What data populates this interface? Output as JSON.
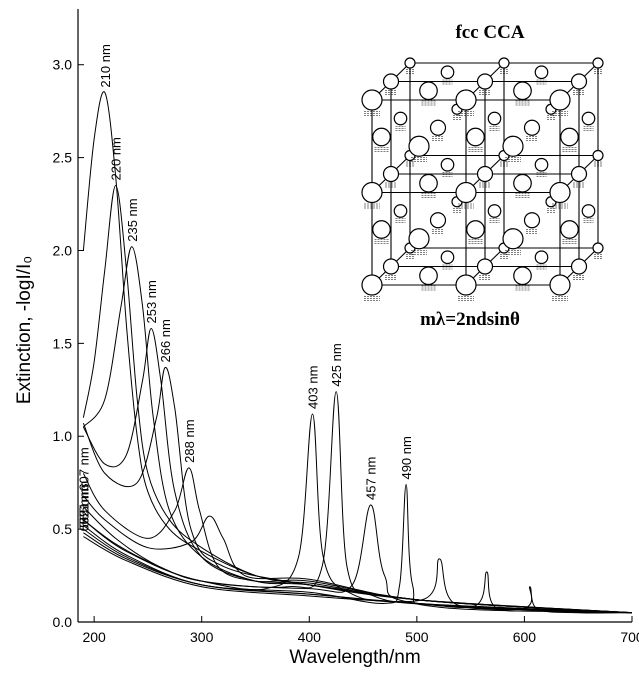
{
  "chart_data": {
    "type": "line",
    "xlabel": "Wavelength/nm",
    "ylabel": "Extinction, -logI/I₀",
    "inset_title": "fcc CCA",
    "inset_formula": "mλ=2ndsinθ",
    "xlim": [
      185,
      700
    ],
    "ylim": [
      0,
      3.3
    ],
    "xticks": [
      200,
      300,
      400,
      500,
      600,
      700
    ],
    "yticks": [
      {
        "value": 0,
        "label": "0.0"
      },
      0.5,
      {
        "value": 1,
        "label": "1.0"
      },
      1.5,
      {
        "value": 2,
        "label": "2.0"
      },
      2.5,
      {
        "value": 3,
        "label": "3.0"
      }
    ],
    "color": "#000000",
    "series": [
      {
        "name": "210 nm",
        "x": [
          190,
          200,
          210,
          220,
          230,
          240,
          250,
          270,
          300,
          350,
          400,
          500,
          600,
          700
        ],
        "values": [
          2.0,
          2.6,
          2.85,
          2.4,
          1.6,
          1.0,
          0.7,
          0.5,
          0.38,
          0.25,
          0.2,
          0.12,
          0.08,
          0.05
        ]
      },
      {
        "name": "220 nm",
        "x": [
          190,
          200,
          210,
          220,
          230,
          240,
          250,
          270,
          300,
          350,
          400,
          500,
          600,
          700
        ],
        "values": [
          1.1,
          1.4,
          1.9,
          2.35,
          1.9,
          1.2,
          0.8,
          0.55,
          0.4,
          0.25,
          0.2,
          0.12,
          0.08,
          0.05
        ]
      },
      {
        "name": "235 nm",
        "x": [
          190,
          210,
          225,
          235,
          245,
          255,
          270,
          300,
          350,
          400,
          500,
          600,
          700
        ],
        "values": [
          1.05,
          1.2,
          1.7,
          2.02,
          1.7,
          1.1,
          0.6,
          0.35,
          0.22,
          0.2,
          0.12,
          0.08,
          0.05
        ]
      },
      {
        "name": "253 nm",
        "x": [
          190,
          210,
          230,
          245,
          253,
          262,
          275,
          300,
          350,
          400,
          500,
          700
        ],
        "values": [
          1.05,
          0.85,
          0.9,
          1.3,
          1.58,
          1.3,
          0.7,
          0.35,
          0.22,
          0.21,
          0.12,
          0.05
        ]
      },
      {
        "name": "266 nm",
        "x": [
          190,
          210,
          240,
          258,
          266,
          275,
          290,
          320,
          400,
          500,
          700
        ],
        "values": [
          1.07,
          0.8,
          0.75,
          1.1,
          1.37,
          1.15,
          0.5,
          0.3,
          0.2,
          0.12,
          0.05
        ]
      },
      {
        "name": "288 nm",
        "x": [
          190,
          210,
          250,
          275,
          288,
          298,
          315,
          350,
          400,
          500,
          700
        ],
        "values": [
          0.8,
          0.6,
          0.45,
          0.6,
          0.83,
          0.6,
          0.3,
          0.22,
          0.22,
          0.12,
          0.05
        ]
      },
      {
        "name": "307 nm",
        "x": [
          190,
          210,
          250,
          290,
          307,
          320,
          340,
          400,
          500,
          700
        ],
        "values": [
          0.68,
          0.55,
          0.4,
          0.43,
          0.57,
          0.45,
          0.25,
          0.23,
          0.12,
          0.05
        ]
      },
      {
        "name": "403 nm",
        "x": [
          190,
          220,
          260,
          300,
          360,
          390,
          403,
          413,
          440,
          500,
          700
        ],
        "values": [
          0.62,
          0.45,
          0.3,
          0.22,
          0.18,
          0.35,
          1.12,
          0.35,
          0.15,
          0.1,
          0.05
        ]
      },
      {
        "name": "425 nm",
        "x": [
          190,
          220,
          260,
          300,
          380,
          412,
          425,
          435,
          460,
          520,
          700
        ],
        "values": [
          0.55,
          0.42,
          0.3,
          0.22,
          0.19,
          0.3,
          1.24,
          0.3,
          0.14,
          0.09,
          0.05
        ]
      },
      {
        "name": "457 nm",
        "x": [
          190,
          230,
          300,
          400,
          440,
          457,
          470,
          500,
          700
        ],
        "values": [
          0.55,
          0.38,
          0.22,
          0.18,
          0.2,
          0.63,
          0.25,
          0.1,
          0.05
        ]
      },
      {
        "name": "490 nm",
        "x": [
          190,
          230,
          300,
          400,
          470,
          484,
          490,
          496,
          520,
          700
        ],
        "values": [
          0.52,
          0.36,
          0.2,
          0.16,
          0.1,
          0.2,
          0.74,
          0.2,
          0.08,
          0.05
        ]
      },
      {
        "name": "521 nm",
        "x": [
          190,
          230,
          300,
          400,
          505,
          521,
          535,
          600,
          700
        ],
        "values": [
          0.5,
          0.35,
          0.2,
          0.15,
          0.12,
          0.34,
          0.1,
          0.07,
          0.05
        ]
      },
      {
        "name": "565 nm",
        "x": [
          190,
          230,
          300,
          400,
          500,
          555,
          565,
          573,
          620,
          700
        ],
        "values": [
          0.48,
          0.34,
          0.2,
          0.15,
          0.1,
          0.09,
          0.27,
          0.08,
          0.06,
          0.05
        ]
      },
      {
        "name": "605 nm",
        "x": [
          190,
          230,
          300,
          400,
          500,
          597,
          605,
          612,
          650,
          700
        ],
        "values": [
          0.46,
          0.33,
          0.19,
          0.14,
          0.1,
          0.07,
          0.19,
          0.07,
          0.05,
          0.05
        ]
      }
    ]
  }
}
